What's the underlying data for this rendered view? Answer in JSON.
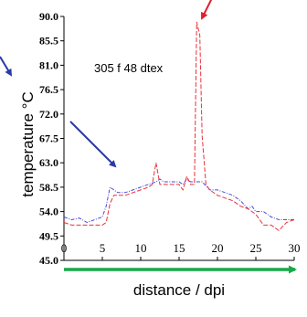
{
  "chart_data": {
    "type": "line",
    "annotation": "305 f 48 dtex",
    "xlabel": "distance / dpi",
    "ylabel": "temperature °C",
    "xlim": [
      0,
      30
    ],
    "ylim": [
      45.0,
      90.0
    ],
    "x_ticks": [
      "0",
      "5",
      "10",
      "15",
      "20",
      "25",
      "30"
    ],
    "y_ticks": [
      "45.0",
      "49.5",
      "54.0",
      "58.5",
      "63.0",
      "67.5",
      "72.0",
      "76.5",
      "81.0",
      "85.5",
      "90.0"
    ],
    "grid": false,
    "legend": "none",
    "colors": {
      "series_blue": "#4a4ad8",
      "series_red": "#e8323c",
      "arrow_red": "#e0202a",
      "arrow_blue": "#2a3aa8",
      "arrow_green": "#19a84a"
    },
    "series": [
      {
        "color": "#4a4ad8",
        "style": "dash-dot",
        "x": [
          0,
          1,
          2,
          3,
          4,
          5,
          5.5,
          6,
          6.5,
          7,
          8,
          9,
          10,
          11,
          12,
          12.5,
          13,
          14,
          15,
          15.5,
          16,
          16.5,
          17,
          18,
          19,
          20,
          21,
          22,
          23,
          24,
          24.5,
          25,
          26,
          27,
          28,
          29,
          30
        ],
        "y": [
          53,
          52.5,
          52.8,
          52,
          52.5,
          53,
          55,
          58.5,
          58,
          57.5,
          57.5,
          58,
          58.5,
          59,
          59.5,
          60,
          59.5,
          59.5,
          59.5,
          59,
          60,
          59.5,
          59.5,
          59.5,
          58,
          58,
          57.5,
          57,
          56,
          54.5,
          55,
          54,
          54,
          53,
          52.5,
          52.5,
          52.5
        ]
      },
      {
        "color": "#e8323c",
        "style": "dashed",
        "x": [
          0,
          1,
          2,
          3,
          4,
          5,
          5.5,
          6,
          6.5,
          7,
          8,
          9,
          10,
          11,
          11.5,
          12,
          12.5,
          13,
          14,
          15,
          15.5,
          16,
          16.5,
          17,
          17.3,
          17.7,
          18,
          18.5,
          19,
          20,
          21,
          22,
          23,
          24,
          25,
          26,
          27,
          28,
          29,
          30
        ],
        "y": [
          52,
          51.5,
          51.5,
          51.5,
          51.5,
          51.5,
          52,
          55.5,
          57,
          57,
          57,
          57.5,
          58,
          58.5,
          59,
          63,
          59,
          59,
          59,
          59,
          58,
          60.5,
          59,
          59,
          89,
          86.5,
          68,
          59,
          58,
          57,
          56.5,
          56,
          55,
          54.5,
          53.5,
          51.5,
          51.5,
          50.5,
          52,
          52.5
        ]
      }
    ]
  }
}
